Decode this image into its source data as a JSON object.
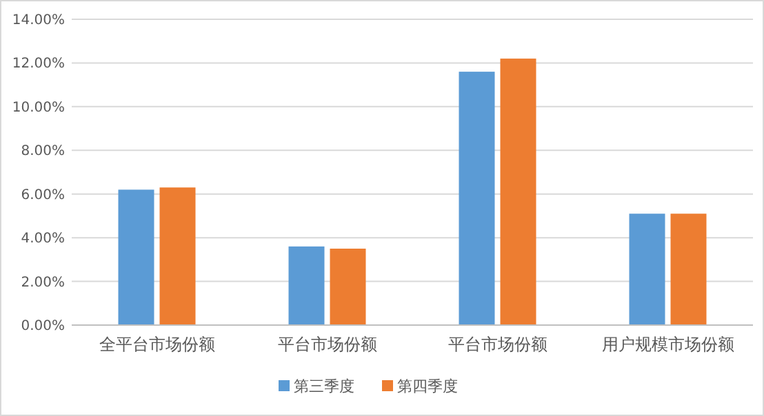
{
  "chart_data": {
    "type": "bar",
    "categories": [
      "全平台市场份额",
      "平台市场份额",
      "平台市场份额",
      "用户规模市场份额"
    ],
    "series": [
      {
        "name": "第三季度",
        "color": "#5b9bd5",
        "values": [
          6.2,
          3.6,
          11.6,
          5.1
        ]
      },
      {
        "name": "第四季度",
        "color": "#ed7d31",
        "values": [
          6.3,
          3.5,
          12.2,
          5.1
        ]
      }
    ],
    "ylim": [
      0,
      14
    ],
    "yticks": [
      {
        "value": 0,
        "label": "0.00%"
      },
      {
        "value": 2,
        "label": "2.00%"
      },
      {
        "value": 4,
        "label": "4.00%"
      },
      {
        "value": 6,
        "label": "6.00%"
      },
      {
        "value": 8,
        "label": "8.00%"
      },
      {
        "value": 10,
        "label": "10.00%"
      },
      {
        "value": 12,
        "label": "12.00%"
      },
      {
        "value": 14,
        "label": "14.00%"
      }
    ],
    "grid": "y",
    "legend": "bottom"
  }
}
